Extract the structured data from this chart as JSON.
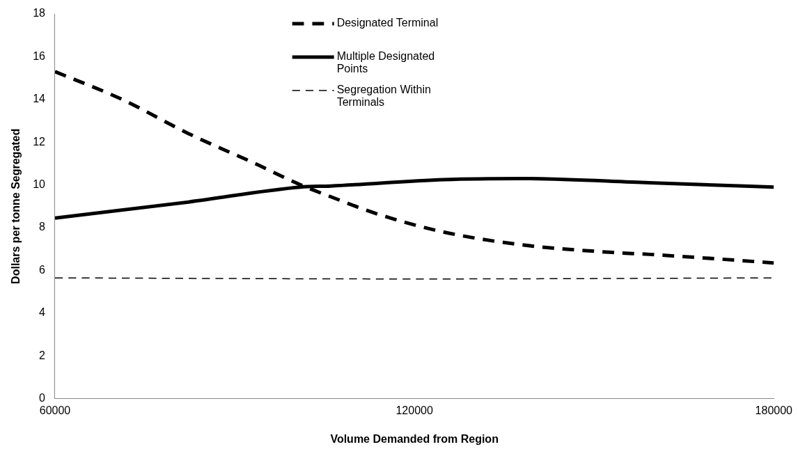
{
  "chart_data": {
    "type": "line",
    "xlabel": "Volume Demanded from Region",
    "ylabel": "Dollars per tonne Segregated",
    "xlim": [
      60000,
      180000
    ],
    "xticks": [
      60000,
      120000,
      180000
    ],
    "ylim": [
      0,
      18
    ],
    "yticks": [
      0,
      2,
      4,
      6,
      8,
      10,
      12,
      14,
      16,
      18
    ],
    "grid": false,
    "legend": "top",
    "marker": "none",
    "series": [
      {
        "name": "Designated Terminal",
        "color": "#000000",
        "line_style": "dashed",
        "x": [
          60000,
          71200,
          82300,
          93400,
          101000,
          106000,
          113700,
          124800,
          137800,
          152500,
          159200,
          170000,
          180000
        ],
        "values": [
          15.3,
          14.0,
          12.4,
          11.0,
          10.0,
          9.45,
          8.65,
          7.8,
          7.2,
          6.85,
          6.75,
          6.55,
          6.35
        ]
      },
      {
        "name": "Multiple Designated Points",
        "color": "#000000",
        "line_style": "solid",
        "x": [
          60000,
          82300,
          101000,
          106000,
          125000,
          137500,
          159200,
          180000
        ],
        "values": [
          8.45,
          9.2,
          9.9,
          9.95,
          10.25,
          10.3,
          10.1,
          9.9
        ]
      },
      {
        "name": "Segregation Within Terminals",
        "color": "#000000",
        "line_style": "dashed",
        "x": [
          60000,
          120000,
          180000
        ],
        "values": [
          5.65,
          5.6,
          5.65
        ]
      }
    ]
  }
}
